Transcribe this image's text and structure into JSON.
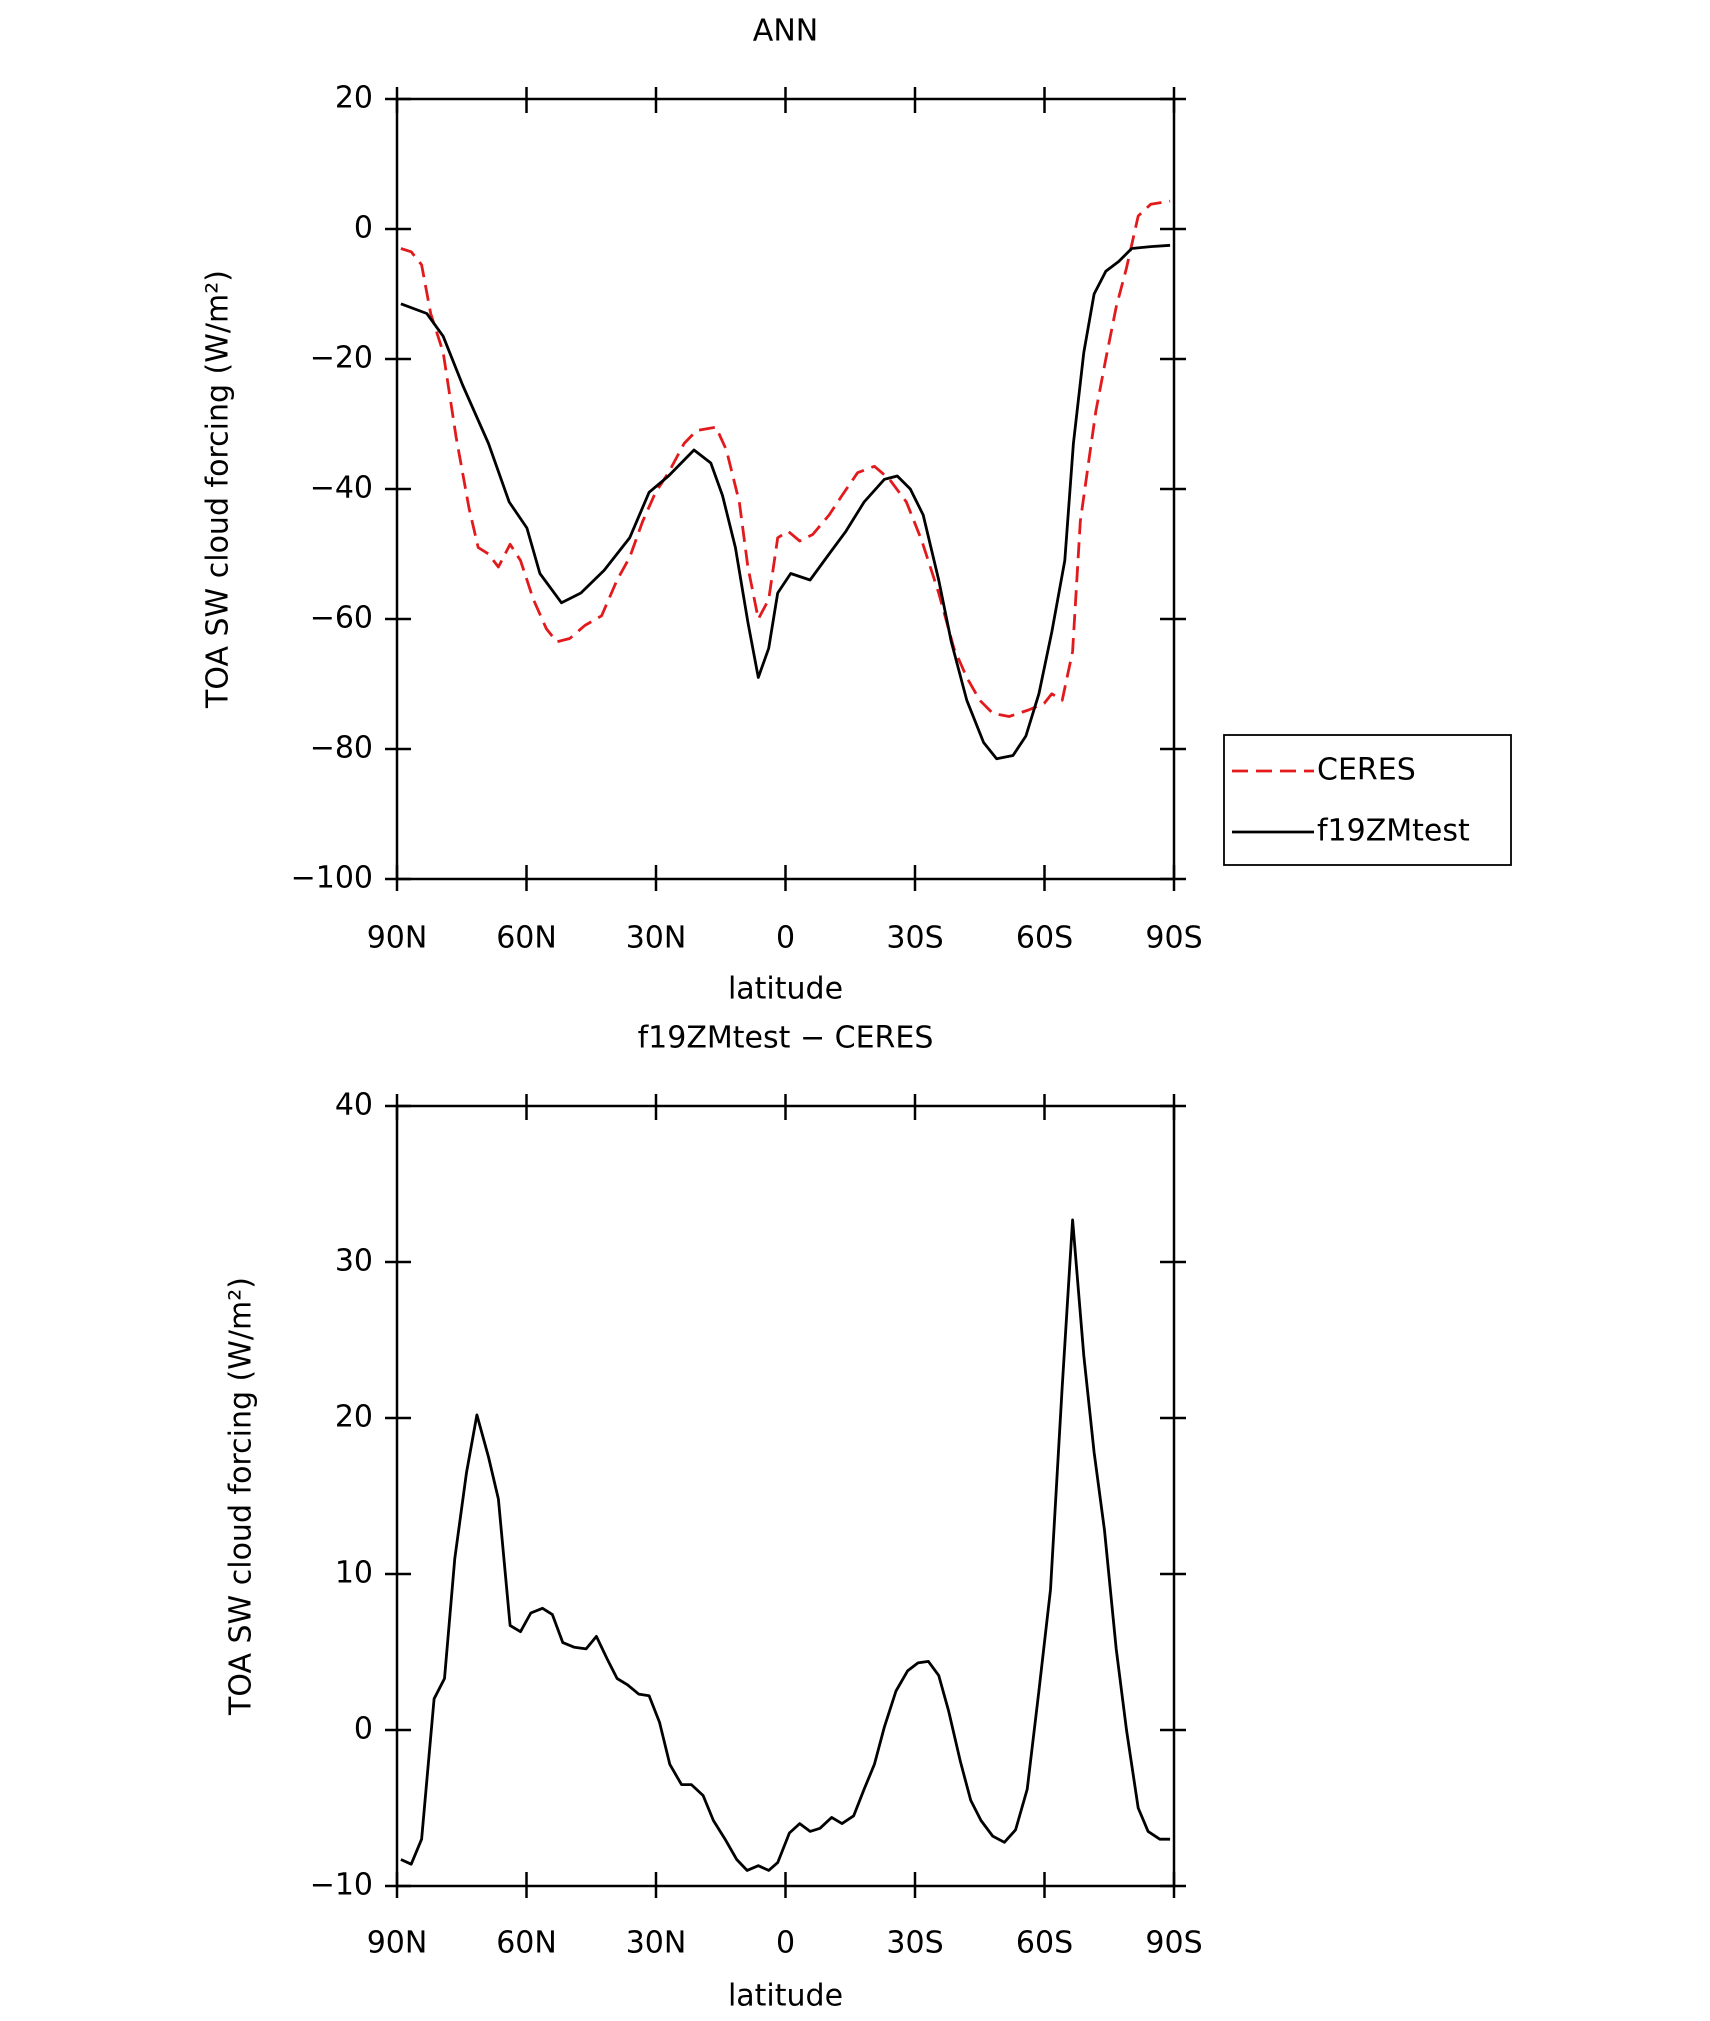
{
  "chart_data": [
    {
      "type": "line",
      "title": "ANN",
      "xlabel": "latitude",
      "ylabel": "TOA SW cloud forcing (W/m²)",
      "xlim": [
        90,
        -90
      ],
      "xticks": [
        {
          "value": 90,
          "label": "90N"
        },
        {
          "value": 60,
          "label": "60N"
        },
        {
          "value": 30,
          "label": "30N"
        },
        0,
        {
          "value": -30,
          "label": "30S"
        },
        {
          "value": -60,
          "label": "60S"
        },
        {
          "value": -90,
          "label": "90S"
        }
      ],
      "ylim": [
        -100,
        20
      ],
      "yticks": [
        {
          "value": -100,
          "label": "−100"
        },
        {
          "value": -80,
          "label": "−80"
        },
        {
          "value": -60,
          "label": "−60"
        },
        {
          "value": -40,
          "label": "−40"
        },
        {
          "value": -20,
          "label": "−20"
        },
        0,
        20
      ],
      "legend": "right",
      "series": [
        {
          "name": "CERES",
          "color": "#e31a1c",
          "dashed": true,
          "x": [
            89.1,
            86.7,
            84.3,
            82.2,
            79.3,
            76.3,
            73.3,
            71.2,
            68.8,
            66.5,
            63.8,
            61.4,
            58.4,
            55.4,
            53,
            50,
            46.5,
            42.6,
            39,
            36.1,
            33.1,
            30.1,
            27.1,
            23.5,
            20.6,
            16.1,
            13.7,
            10.7,
            8.7,
            6.3,
            3.9,
            1.8,
            -0.6,
            -3.3,
            -6.3,
            -10.1,
            -13.1,
            -16.7,
            -20.6,
            -24.1,
            -28,
            -31.6,
            -35.5,
            -39,
            -42,
            -45,
            -48,
            -51.8,
            -56.3,
            -59.9,
            -61.7,
            -64.1,
            -66.5,
            -68.3,
            -70.4,
            -71.9,
            -74.2,
            -76.6,
            -79,
            -81.7,
            -84.6,
            -89.1
          ],
          "values": [
            -3,
            -3.5,
            -5.5,
            -13,
            -19,
            -32,
            -43,
            -49,
            -50,
            -52,
            -48.5,
            -51,
            -57,
            -61.5,
            -63.5,
            -63,
            -61,
            -59.5,
            -54,
            -50.5,
            -45,
            -40.5,
            -37.5,
            -33,
            -31,
            -30.5,
            -34,
            -42,
            -52,
            -60,
            -57,
            -47.5,
            -46.5,
            -48,
            -47,
            -44,
            -41,
            -37.5,
            -36.5,
            -38.5,
            -42,
            -48,
            -56,
            -64.5,
            -69,
            -72.5,
            -74.5,
            -75,
            -74,
            -73,
            -71.5,
            -72.5,
            -65,
            -45,
            -35,
            -28,
            -20,
            -12,
            -6,
            2,
            3.8,
            4.3
          ]
        },
        {
          "name": "f19ZMtest",
          "color": "#000000",
          "dashed": false,
          "x": [
            89.1,
            83.1,
            79.3,
            74.8,
            68.8,
            64,
            59.9,
            56.9,
            51.9,
            47.4,
            42,
            36.1,
            31.6,
            27.1,
            21.2,
            17.3,
            14.6,
            11.6,
            8.7,
            6.3,
            3.9,
            1.8,
            -1.2,
            -5.7,
            -10.1,
            -14,
            -18.2,
            -22.9,
            -25.9,
            -28.9,
            -31.9,
            -35.5,
            -38.4,
            -42,
            -45.9,
            -48.9,
            -52.7,
            -55.7,
            -58.7,
            -61.7,
            -64.7,
            -66.7,
            -69.1,
            -71.5,
            -74.2,
            -77.2,
            -80.2,
            -84.6,
            -89.1
          ],
          "values": [
            -11.5,
            -13,
            -16.5,
            -24,
            -33,
            -42,
            -46,
            -53,
            -57.5,
            -56,
            -52.5,
            -47.5,
            -40.5,
            -38,
            -34,
            -36,
            -41,
            -49,
            -60.5,
            -69,
            -64.5,
            -56,
            -53,
            -54,
            -50,
            -46.5,
            -42,
            -38.5,
            -38,
            -40,
            -44,
            -54,
            -63.5,
            -72.5,
            -79,
            -81.5,
            -81,
            -78,
            -71.5,
            -62,
            -51,
            -33,
            -19,
            -10,
            -6.5,
            -5,
            -3,
            -2.7,
            -2.5
          ]
        }
      ]
    },
    {
      "type": "line",
      "title": "f19ZMtest − CERES",
      "xlabel": "latitude",
      "ylabel": "TOA SW cloud forcing (W/m²)",
      "xlim": [
        90,
        -90
      ],
      "xticks": [
        {
          "value": 90,
          "label": "90N"
        },
        {
          "value": 60,
          "label": "60N"
        },
        {
          "value": 30,
          "label": "30N"
        },
        0,
        {
          "value": -30,
          "label": "30S"
        },
        {
          "value": -60,
          "label": "60S"
        },
        {
          "value": -90,
          "label": "90S"
        }
      ],
      "ylim": [
        -10,
        40
      ],
      "yticks": [
        {
          "value": -10,
          "label": "−10"
        },
        0,
        10,
        20,
        30,
        40
      ],
      "series": [
        {
          "color": "#000000",
          "dashed": false,
          "x": [
            89.1,
            86.7,
            84.3,
            81.4,
            79,
            76.6,
            73.9,
            71.5,
            68.8,
            66.5,
            63.8,
            61.4,
            59,
            56.3,
            54,
            51.6,
            48.9,
            46.2,
            43.8,
            41.4,
            39,
            36.6,
            34,
            31.6,
            29.2,
            26.8,
            24.1,
            21.8,
            19.1,
            16.7,
            14,
            11.3,
            8.9,
            6.3,
            3.9,
            1.8,
            -0.9,
            -3.3,
            -5.7,
            -8,
            -10.7,
            -13.1,
            -15.8,
            -18.2,
            -20.6,
            -22.9,
            -25.6,
            -28.3,
            -30.7,
            -33.1,
            -35.5,
            -37.8,
            -40.5,
            -42.9,
            -45.3,
            -48,
            -50.7,
            -53.3,
            -56,
            -58.7,
            -61.4,
            -64.1,
            -66.5,
            -69.1,
            -71.5,
            -73.9,
            -76.6,
            -79,
            -81.7,
            -84,
            -86.7,
            -89.1
          ],
          "values": [
            -8.3,
            -8.6,
            -7,
            2,
            3.3,
            11,
            16.5,
            20.2,
            17.5,
            14.8,
            6.7,
            6.3,
            7.5,
            7.8,
            7.4,
            5.6,
            5.3,
            5.2,
            6,
            4.6,
            3.3,
            2.9,
            2.3,
            2.2,
            0.5,
            -2.2,
            -3.5,
            -3.5,
            -4.2,
            -5.8,
            -7,
            -8.3,
            -9,
            -8.7,
            -9,
            -8.5,
            -6.6,
            -6,
            -6.5,
            -6.3,
            -5.6,
            -6,
            -5.5,
            -3.8,
            -2.2,
            0.2,
            2.5,
            3.8,
            4.3,
            4.4,
            3.5,
            1.2,
            -2,
            -4.5,
            -5.8,
            -6.8,
            -7.2,
            -6.4,
            -3.8,
            2.5,
            9,
            22,
            32.7,
            24,
            17.8,
            12.8,
            5.2,
            0,
            -5,
            -6.5,
            -7,
            -7
          ]
        }
      ]
    }
  ]
}
